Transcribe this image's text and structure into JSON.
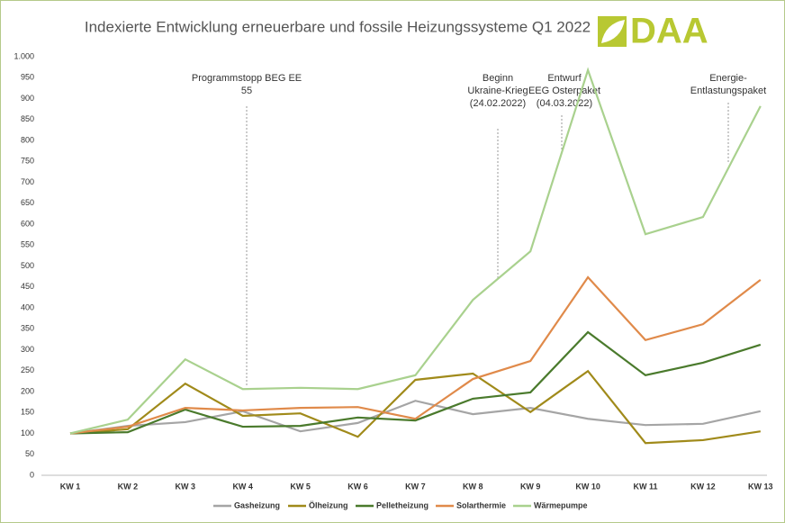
{
  "chart_data": {
    "type": "line",
    "title": "Indexierte Entwicklung erneuerbare und fossile Heizungssysteme Q1 2022",
    "logo": "DAA",
    "categories": [
      "KW 1",
      "KW 2",
      "KW 3",
      "KW 4",
      "KW 5",
      "KW 6",
      "KW 7",
      "KW 8",
      "KW 9",
      "KW 10",
      "KW 11",
      "KW 12",
      "KW 13"
    ],
    "ylim": [
      0,
      1000
    ],
    "yticks": [
      0,
      50,
      100,
      150,
      200,
      250,
      300,
      350,
      400,
      450,
      500,
      550,
      600,
      650,
      700,
      750,
      800,
      850,
      900,
      950,
      {
        "value": 1000,
        "label": "1.000"
      }
    ],
    "grid": false,
    "legend": "bottom",
    "series": [
      {
        "name": "Gasheizung",
        "color": "#a5a5a5",
        "values": [
          100,
          118,
          127,
          153,
          105,
          125,
          178,
          146,
          161,
          135,
          120,
          123,
          153
        ]
      },
      {
        "name": "Ölheizung",
        "color": "#a08a1a",
        "values": [
          100,
          110,
          219,
          142,
          148,
          92,
          228,
          243,
          151,
          249,
          77,
          84,
          105
        ]
      },
      {
        "name": "Pelletheizung",
        "color": "#4a7a2c",
        "values": [
          100,
          103,
          157,
          116,
          118,
          138,
          131,
          183,
          198,
          342,
          239,
          269,
          312
        ]
      },
      {
        "name": "Solarthermie",
        "color": "#e08a4a",
        "values": [
          100,
          116,
          161,
          155,
          161,
          163,
          135,
          230,
          273,
          473,
          323,
          361,
          467
        ]
      },
      {
        "name": "Wärmepumpe",
        "color": "#a9d18e",
        "values": [
          100,
          133,
          277,
          206,
          209,
          206,
          239,
          419,
          535,
          968,
          576,
          617,
          882
        ]
      }
    ],
    "annotations": [
      {
        "lines": [
          "Programmstopp BEG EE",
          "55"
        ]
      },
      {
        "lines": [
          "Beginn",
          "Ukraine-Krieg",
          "(24.02.2022)"
        ]
      },
      {
        "lines": [
          "Entwurf",
          "EEG Osterpaket",
          "(04.03.2022)"
        ]
      },
      {
        "lines": [
          "Energie-",
          "Entlastungspaket"
        ]
      }
    ]
  }
}
